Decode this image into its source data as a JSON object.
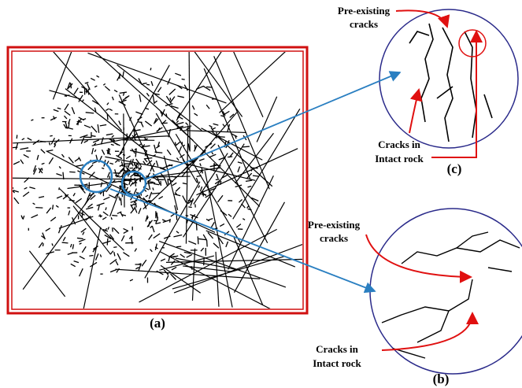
{
  "panels": [
    {
      "label": "(a)"
    },
    {
      "label": "(c)",
      "annotations": [
        {
          "lines": [
            "Pre-existing",
            "cracks"
          ]
        },
        {
          "lines": [
            "Cracks in",
            "Intact rock"
          ]
        }
      ]
    },
    {
      "label": "(b)",
      "annotations": [
        {
          "lines": [
            "Pre-existing",
            "cracks"
          ]
        },
        {
          "lines": [
            "Cracks in",
            "Intact rock"
          ]
        }
      ]
    }
  ]
}
